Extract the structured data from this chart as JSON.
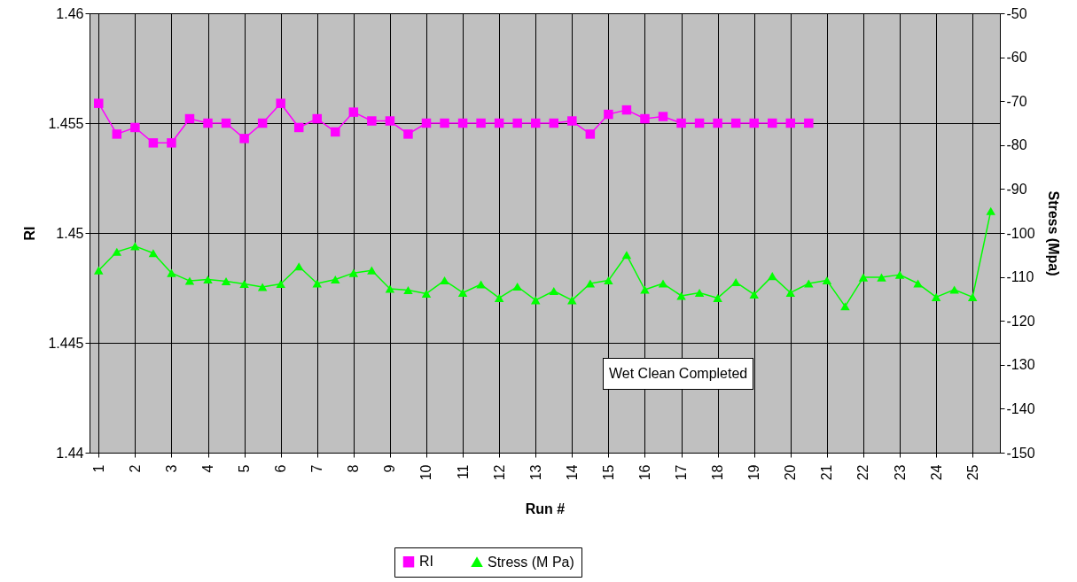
{
  "chart_data": {
    "type": "line",
    "xlabel": "Run #",
    "ylabel": "RI",
    "y2label": "Stress (Mpa)",
    "categories": [
      "1",
      null,
      "2",
      null,
      "3",
      null,
      "4",
      null,
      "5",
      null,
      "6",
      null,
      "7",
      null,
      "8",
      null,
      "9",
      null,
      "10",
      null,
      "11",
      null,
      "12",
      null,
      "13",
      null,
      "14",
      null,
      "15",
      null,
      "16",
      null,
      "17",
      null,
      "18",
      null,
      "19",
      null,
      "20",
      null,
      "21",
      null,
      "22",
      null,
      "23",
      null,
      "24",
      null,
      "25",
      null
    ],
    "series": [
      {
        "name": "RI",
        "color": "#ff00ff",
        "marker": "square",
        "values": [
          1.4559,
          1.4545,
          1.4548,
          1.4541,
          1.4541,
          1.4552,
          1.455,
          1.455,
          1.4543,
          1.455,
          1.4559,
          1.4548,
          1.4552,
          1.4546,
          1.4555,
          1.4551,
          1.4551,
          1.4545,
          1.455,
          1.455,
          1.455,
          1.455,
          1.455,
          1.455,
          1.455,
          1.455,
          1.4551,
          1.4545,
          1.4554,
          1.4556,
          1.4552,
          1.4553,
          1.455,
          1.455,
          1.455,
          1.455,
          1.455,
          1.455,
          1.455,
          1.455,
          null,
          null,
          null,
          null,
          null,
          null,
          null,
          null,
          null,
          null
        ]
      },
      {
        "name": "Stress (M Pa)",
        "color": "#00ff00",
        "marker": "triangle",
        "axis": "y2",
        "values": [
          -108.5,
          -104.3,
          -103,
          -104.6,
          -109.1,
          -110.9,
          -110.6,
          -111,
          -111.6,
          -112.3,
          -111.6,
          -107.6,
          -111.5,
          -110.6,
          -109.1,
          -108.5,
          -112.7,
          -113,
          -113.8,
          -110.8,
          -113.6,
          -111.7,
          -114.8,
          -112.2,
          -115.3,
          -113.2,
          -115.3,
          -111.5,
          -110.8,
          -105,
          -112.9,
          -111.5,
          -114.3,
          -113.6,
          -114.8,
          -111.2,
          -114,
          -109.8,
          -113.6,
          -111.5,
          -110.8,
          -116.7,
          -110.1,
          -110.1,
          -109.5,
          -111.5,
          -114.6,
          -112.9,
          -114.6,
          -95
        ]
      }
    ],
    "ylim": [
      1.44,
      1.46
    ],
    "yticks": [
      1.44,
      1.445,
      1.45,
      1.455,
      1.46
    ],
    "y2lim": [
      -150,
      -50
    ],
    "y2ticks": [
      -150,
      -140,
      -130,
      -120,
      -110,
      -100,
      -90,
      -80,
      -70,
      -60,
      -50
    ],
    "grid": true,
    "legend": "bottom",
    "annotations": [
      "Wet Clean Completed"
    ]
  }
}
